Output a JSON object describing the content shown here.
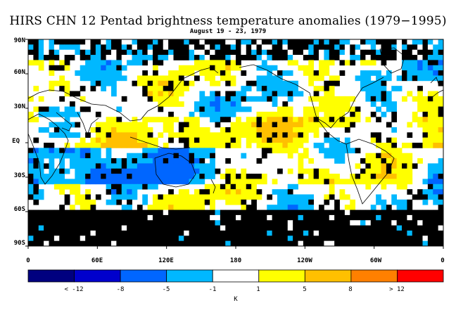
{
  "title": "HIRS CHN 12 Pentad brightness temperature anomalies (1979−1995)",
  "subtitle": "August 19 - 23, 1979",
  "lat_labels": [
    "90N",
    "60N",
    "30N",
    "EQ",
    "30S",
    "60S",
    "90S"
  ],
  "lon_labels": [
    "0",
    "60E",
    "120E",
    "180",
    "120W",
    "60W",
    "0"
  ],
  "colorbar": {
    "labels": [
      "< -12",
      "-8",
      "-5",
      "-1",
      "1",
      "5",
      "8",
      "> 12"
    ],
    "colors": [
      "#00007f",
      "#0000cc",
      "#0066ff",
      "#00b8ff",
      "#ffffff",
      "#ffff00",
      "#ffc000",
      "#ff8000",
      "#ff0000"
    ],
    "unit": "K"
  },
  "map_colors": {
    "no_data": "#000000",
    "strong_cold": "#0066ff",
    "cold": "#00b8ff",
    "neutral": "#ffffff",
    "warm": "#ffff00",
    "strong_warm": "#ffc000"
  }
}
